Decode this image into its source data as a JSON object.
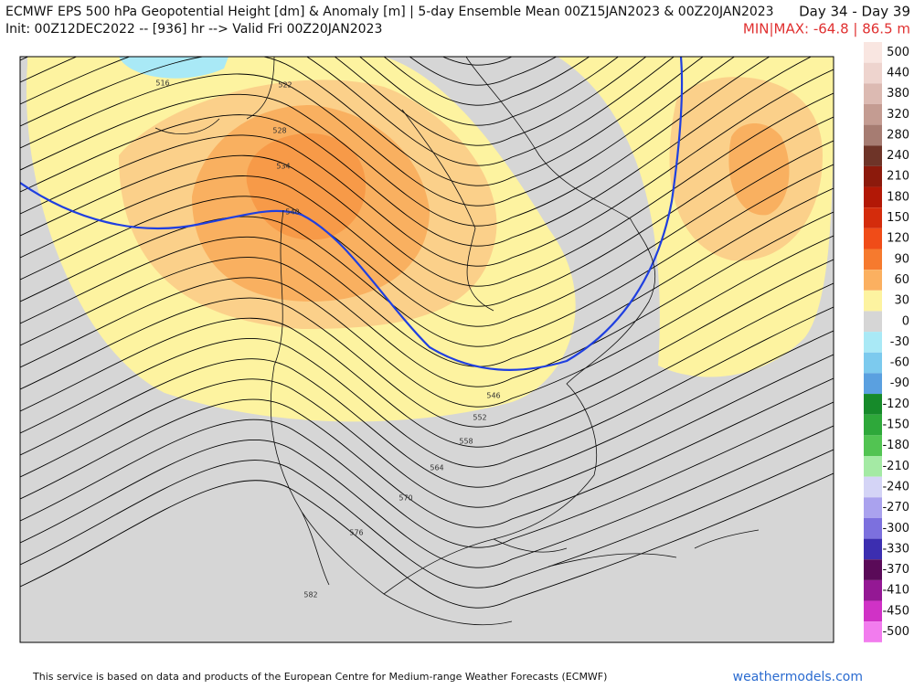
{
  "header": {
    "title": "ECMWF EPS 500 hPa Geopotential Height [dm] & Anomaly [m] | 5-day Ensemble Mean 00Z15JAN2023 & 00Z20JAN2023",
    "days": "Day 34 - Day 39",
    "init": "Init: 00Z12DEC2022 -- [936] hr --> Valid Fri 00Z20JAN2023",
    "minmax": "MIN|MAX: -64.8 | 86.5 m"
  },
  "colorbar": {
    "values": [
      500,
      440,
      380,
      320,
      280,
      240,
      210,
      180,
      150,
      120,
      90,
      60,
      30,
      0,
      -30,
      -60,
      -90,
      -120,
      -150,
      -180,
      -210,
      -240,
      -270,
      -300,
      -330,
      -370,
      -410,
      -450,
      -500
    ],
    "colors": [
      "#f9e6e1",
      "#eed4ce",
      "#dcbab2",
      "#c49c92",
      "#a67c72",
      "#6e3428",
      "#8c1a0c",
      "#b21806",
      "#d42c0c",
      "#f04c18",
      "#f67a2e",
      "#fbb060",
      "#fdf3a0",
      "#d6d6d6",
      "#a9e9f6",
      "#7ccaee",
      "#5aa0e0",
      "#168a2a",
      "#2ea83a",
      "#52c452",
      "#a4eaa4",
      "#d4d4f6",
      "#aaa2ee",
      "#7c70de",
      "#3c2eb0",
      "#5a0a58",
      "#941894",
      "#d032c6",
      "#f27cee"
    ]
  },
  "contour_labels": [
    "516",
    "522",
    "528",
    "534",
    "540",
    "546",
    "552",
    "558",
    "564",
    "570",
    "576",
    "582"
  ],
  "footer": {
    "credit": "This service is based on data and products of the European Centre for Medium-range Weather Forecasts (ECMWF)",
    "site": "weathermodels.com"
  }
}
